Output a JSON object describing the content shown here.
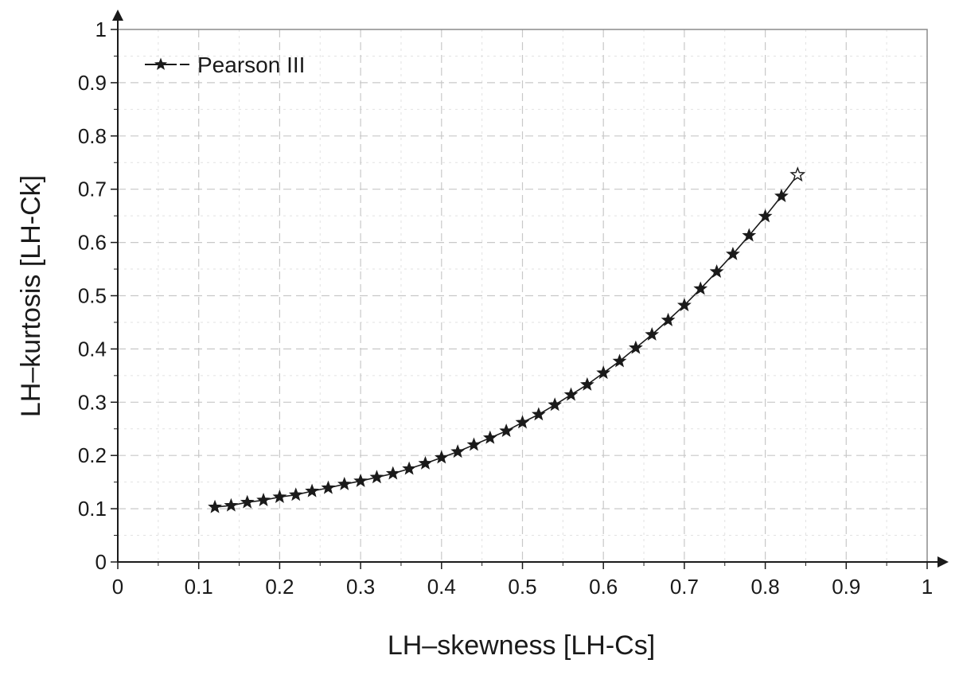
{
  "chart_data": {
    "type": "line",
    "xlabel": "LH–skewness [LH-Cs]",
    "ylabel": "LH–kurtosis [LH-Ck]",
    "xlim": [
      0,
      1
    ],
    "ylim": [
      0,
      1
    ],
    "x_ticks": [
      "0",
      "0.1",
      "0.2",
      "0.3",
      "0.4",
      "0.5",
      "0.6",
      "0.7",
      "0.8",
      "0.9",
      "1"
    ],
    "y_ticks": [
      "0",
      "0.1",
      "0.2",
      "0.3",
      "0.4",
      "0.5",
      "0.6",
      "0.7",
      "0.8",
      "0.9",
      "1"
    ],
    "grid": true,
    "legend_position": "top-left",
    "marker": "star",
    "color": "#1a1a1a",
    "series": [
      {
        "name": "Pearson III",
        "x": [
          0.12,
          0.14,
          0.16,
          0.18,
          0.2,
          0.22,
          0.24,
          0.26,
          0.28,
          0.3,
          0.32,
          0.34,
          0.36,
          0.38,
          0.4,
          0.42,
          0.44,
          0.46,
          0.48,
          0.5,
          0.52,
          0.54,
          0.56,
          0.58,
          0.6,
          0.62,
          0.64,
          0.66,
          0.68,
          0.7,
          0.72,
          0.74,
          0.76,
          0.78,
          0.8,
          0.82,
          0.84
        ],
        "y": [
          0.103,
          0.106,
          0.112,
          0.116,
          0.122,
          0.126,
          0.133,
          0.139,
          0.146,
          0.152,
          0.159,
          0.166,
          0.175,
          0.185,
          0.196,
          0.207,
          0.22,
          0.233,
          0.246,
          0.262,
          0.277,
          0.295,
          0.314,
          0.333,
          0.355,
          0.377,
          0.402,
          0.427,
          0.454,
          0.482,
          0.513,
          0.545,
          0.578,
          0.613,
          0.649,
          0.687,
          0.727
        ]
      }
    ]
  }
}
